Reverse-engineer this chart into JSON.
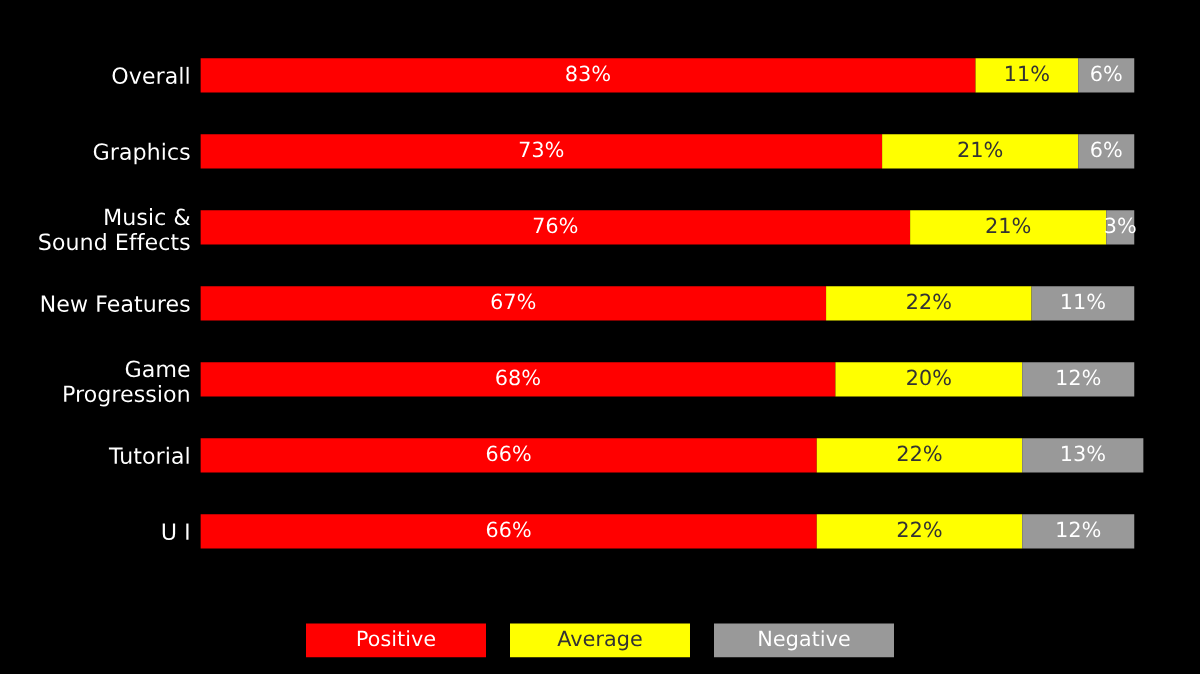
{
  "chart_data": {
    "type": "bar",
    "orientation": "horizontal",
    "stacked": true,
    "legend": "bottom",
    "categories": [
      "Overall",
      "Graphics",
      "Music &\nSound Effects",
      "New Features",
      "Game\nProgression",
      "Tutorial",
      "U I"
    ],
    "series": [
      {
        "name": "Positive",
        "color": "#ff0000",
        "values": [
          83,
          73,
          76,
          67,
          68,
          66,
          66
        ],
        "value_labels": [
          "83%",
          "73%",
          "76%",
          "67%",
          "68%",
          "66%",
          "66%"
        ]
      },
      {
        "name": "Average",
        "color": "#ffff00",
        "values": [
          11,
          21,
          21,
          22,
          20,
          22,
          22
        ],
        "value_labels": [
          "11%",
          "21%",
          "21%",
          "22%",
          "20%",
          "22%",
          "22%"
        ]
      },
      {
        "name": "Negative",
        "color": "#999999",
        "values": [
          6,
          6,
          3,
          11,
          12,
          13,
          12
        ],
        "value_labels": [
          "6%",
          "6%",
          "3%",
          "11%",
          "12%",
          "13%",
          "12%"
        ]
      }
    ]
  }
}
